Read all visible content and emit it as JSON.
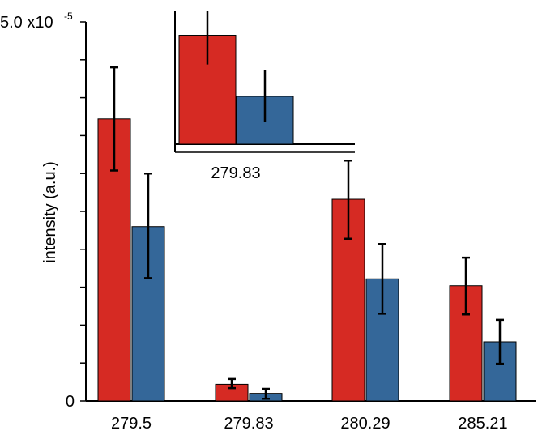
{
  "chart_data": [
    {
      "type": "bar",
      "ylabel": "intensity (a.u.)",
      "y_tick_labels": [
        "0",
        "5.0 x10",
        "-5"
      ],
      "ylim": [
        0,
        5e-05
      ],
      "y_minor_tick_step": 5e-06,
      "categories": [
        "279.5",
        "279.83",
        "280.29",
        "285.21"
      ],
      "series": [
        {
          "color": "#d62a23",
          "values": [
            3.72e-05,
            2.2e-06,
            2.66e-05,
            1.52e-05
          ],
          "err_low": [
            3.04e-05,
            1.7e-06,
            2.14e-05,
            1.14e-05
          ],
          "err_high": [
            4.4e-05,
            2.9e-06,
            3.17e-05,
            1.89e-05
          ]
        },
        {
          "color": "#346799",
          "values": [
            2.3e-05,
            1e-06,
            1.61e-05,
            7.8e-06
          ],
          "err_low": [
            1.62e-05,
            3e-07,
            1.15e-05,
            4.9e-06
          ],
          "err_high": [
            3e-05,
            1.6e-06,
            2.07e-05,
            1.07e-05
          ]
        }
      ],
      "grid": false
    },
    {
      "type": "bar",
      "inset": true,
      "categories": [
        "279.83"
      ],
      "series": [
        {
          "color": "#d62a23",
          "values": [
            0.82
          ],
          "err_low": [
            0.6
          ],
          "err_high": [
            1.0
          ]
        },
        {
          "color": "#346799",
          "values": [
            0.36
          ],
          "err_low": [
            0.17
          ],
          "err_high": [
            0.56
          ]
        }
      ]
    }
  ]
}
